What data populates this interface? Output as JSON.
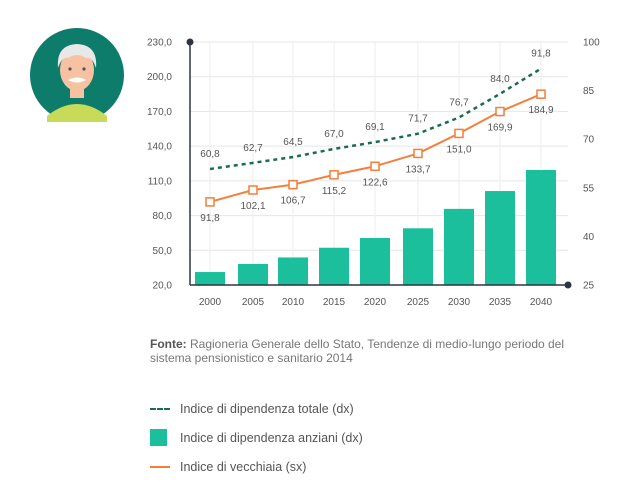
{
  "chart_data": {
    "type": "bar+line",
    "categories": [
      "2000",
      "2005",
      "2010",
      "2015",
      "2020",
      "2025",
      "2030",
      "2035",
      "2040"
    ],
    "y_left": {
      "ticks": [
        "20,0",
        "50,0",
        "80,0",
        "110,0",
        "140,0",
        "170,0",
        "200,0",
        "230,0"
      ],
      "range": [
        20,
        230
      ]
    },
    "y_right": {
      "ticks": [
        "25",
        "40",
        "55",
        "70",
        "85",
        "100"
      ],
      "range": [
        25,
        100
      ]
    },
    "series": [
      {
        "name": "Indice di dipendenza totale (dx)",
        "kind": "dashed-line",
        "axis": "right",
        "color": "#1a6b52",
        "values": [
          60.8,
          62.7,
          64.5,
          67.0,
          69.1,
          71.7,
          76.7,
          84.0,
          91.8
        ],
        "labels": [
          "60,8",
          "62,7",
          "64,5",
          "67,0",
          "69,1",
          "71,7",
          "76,7",
          "84,0",
          "91,8"
        ]
      },
      {
        "name": "Indice di dipendenza anziani (dx)",
        "kind": "bar",
        "axis": "right",
        "color": "#1cbf9b",
        "values": [
          29.0,
          31.5,
          33.5,
          36.5,
          39.5,
          42.5,
          48.5,
          54.0,
          60.5
        ]
      },
      {
        "name": "Indice di vecchiaia (sx)",
        "kind": "line",
        "axis": "left",
        "color": "#f47f3a",
        "values": [
          91.8,
          102.1,
          106.7,
          115.2,
          122.6,
          133.7,
          151.0,
          169.9,
          184.9
        ],
        "labels": [
          "91,8",
          "102,1",
          "106,7",
          "115,2",
          "122,6",
          "133,7",
          "151,0",
          "169,9",
          "184,9"
        ]
      }
    ],
    "grid": true
  },
  "source": {
    "prefix": "Fonte:",
    "text": " Ragioneria Generale dello Stato, Tendenze di medio-lungo periodo del sistema pensionistico e sanitario 2014"
  },
  "legend": {
    "items": [
      "Indice di dipendenza totale (dx)",
      "Indice di dipendenza anziani (dx)",
      "Indice di vecchiaia (sx)"
    ]
  },
  "colors": {
    "avatar_bg": "#0e7c6b",
    "sweater": "#c8db59",
    "skin": "#f7c2a2",
    "hair": "#e8e8e8"
  },
  "icons": {
    "avatar": "elderly-man-avatar-icon"
  }
}
